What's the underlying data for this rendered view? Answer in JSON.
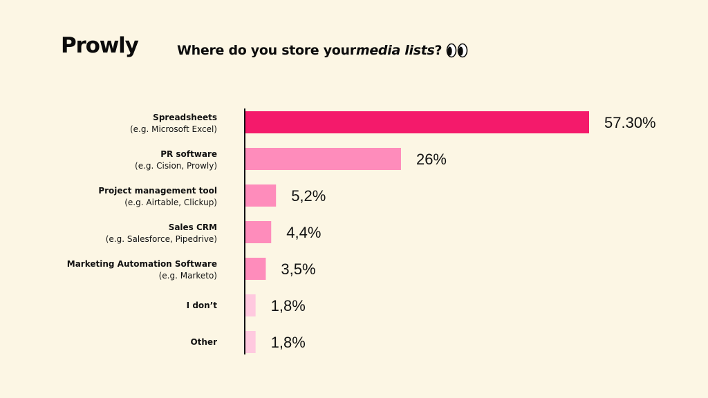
{
  "brand": {
    "logo_text": "Prowly"
  },
  "header": {
    "title_start": "Where do you store your ",
    "title_emphasis": "media lists",
    "title_end": "?",
    "title_icon": "eyes-icon"
  },
  "colors": {
    "background": "#fcf6e4",
    "bar_primary": "#f41a6b",
    "bar_secondary": "#fe8cbb",
    "bar_light": "#ffc9df",
    "axis": "#111111",
    "text": "#111111"
  },
  "chart_data": {
    "type": "bar",
    "orientation": "horizontal",
    "categories": [
      "Spreadsheets",
      "PR software",
      "Project management tool",
      "Sales CRM",
      "Marketing Automation Software",
      "I don’t",
      "Other"
    ],
    "sublabels": [
      "(e.g. Microsoft Excel)",
      "(e.g. Cision, Prowly)",
      "(e.g. Airtable, Clickup)",
      "(e.g. Salesforce, Pipedrive)",
      "(e.g. Marketo)",
      "",
      ""
    ],
    "values": [
      57.3,
      26,
      5.2,
      4.4,
      3.5,
      1.8,
      1.8
    ],
    "value_labels": [
      "57.30%",
      "26%",
      "5,2%",
      "4,4%",
      "3,5%",
      "1,8%",
      "1,8%"
    ],
    "bar_colors": [
      "#f41a6b",
      "#fe8cbb",
      "#fe8cbb",
      "#fe8cbb",
      "#fe8cbb",
      "#ffc9df",
      "#ffc9df"
    ],
    "title": "Where do you store your media lists?",
    "xlabel": "",
    "ylabel": "",
    "xlim": [
      0,
      57.3
    ],
    "grid": false,
    "legend": "none"
  }
}
